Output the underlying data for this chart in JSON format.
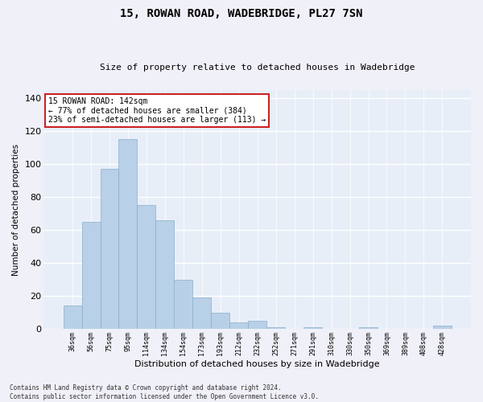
{
  "title": "15, ROWAN ROAD, WADEBRIDGE, PL27 7SN",
  "subtitle": "Size of property relative to detached houses in Wadebridge",
  "xlabel": "Distribution of detached houses by size in Wadebridge",
  "ylabel": "Number of detached properties",
  "bar_color": "#b8d0e8",
  "bar_edge_color": "#8aafc8",
  "background_color": "#e8eef8",
  "fig_background_color": "#f0f0f8",
  "grid_color": "#ffffff",
  "categories": [
    "36sqm",
    "56sqm",
    "75sqm",
    "95sqm",
    "114sqm",
    "134sqm",
    "154sqm",
    "173sqm",
    "193sqm",
    "212sqm",
    "232sqm",
    "252sqm",
    "271sqm",
    "291sqm",
    "310sqm",
    "330sqm",
    "350sqm",
    "369sqm",
    "389sqm",
    "408sqm",
    "428sqm"
  ],
  "values": [
    14,
    65,
    97,
    115,
    75,
    66,
    30,
    19,
    10,
    4,
    5,
    1,
    0,
    1,
    0,
    0,
    1,
    0,
    0,
    0,
    2
  ],
  "ylim": [
    0,
    145
  ],
  "yticks": [
    0,
    20,
    40,
    60,
    80,
    100,
    120,
    140
  ],
  "annotation_line1": "15 ROWAN ROAD: 142sqm",
  "annotation_line2": "← 77% of detached houses are smaller (384)",
  "annotation_line3": "23% of semi-detached houses are larger (113) →",
  "annotation_box_facecolor": "#ffffff",
  "annotation_box_edge_color": "#cc2222",
  "footnote_line1": "Contains HM Land Registry data © Crown copyright and database right 2024.",
  "footnote_line2": "Contains public sector information licensed under the Open Government Licence v3.0."
}
